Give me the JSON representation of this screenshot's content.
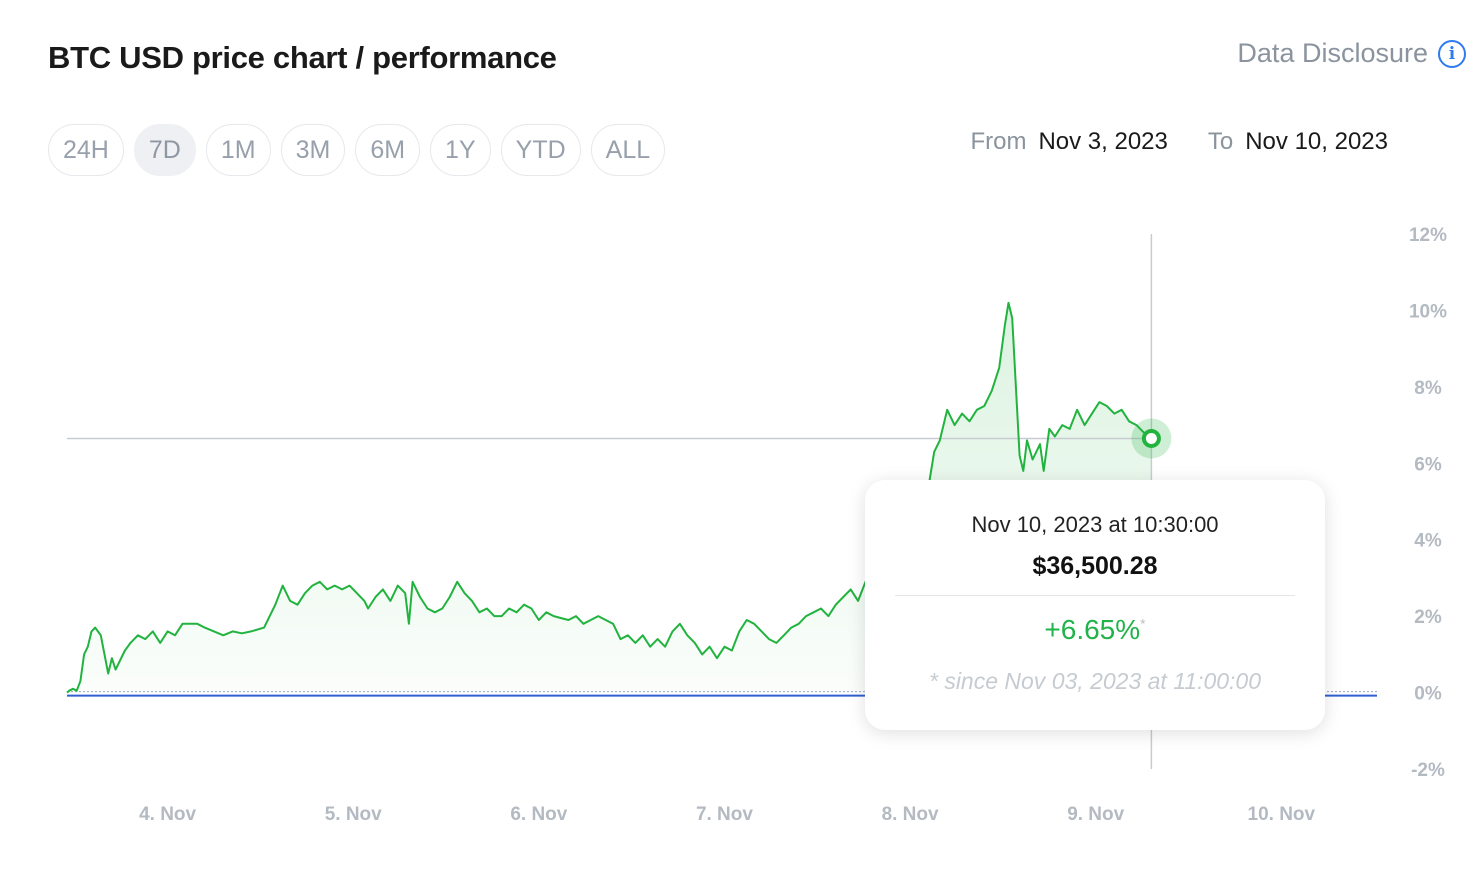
{
  "header": {
    "title": "BTC USD price chart / performance",
    "disclosure_label": "Data Disclosure",
    "info_glyph": "i"
  },
  "range_tabs": [
    {
      "label": "24H",
      "active": false
    },
    {
      "label": "7D",
      "active": true
    },
    {
      "label": "1M",
      "active": false
    },
    {
      "label": "3M",
      "active": false
    },
    {
      "label": "6M",
      "active": false
    },
    {
      "label": "1Y",
      "active": false
    },
    {
      "label": "YTD",
      "active": false
    },
    {
      "label": "ALL",
      "active": false
    }
  ],
  "date_range": {
    "from_label": "From",
    "from_value": "Nov 3, 2023",
    "to_label": "To",
    "to_value": "Nov 10, 2023"
  },
  "tooltip": {
    "date": "Nov 10, 2023 at 10:30:00",
    "price": "$36,500.28",
    "change": "+6.65%",
    "asterisk": "*",
    "since": "* since Nov 03, 2023 at 11:00:00"
  },
  "colors": {
    "line": "#22b33f",
    "fill": "#22b33f",
    "baseline": "#2f5fd0",
    "crosshair": "#c8ccd2",
    "axis_text": "#b4bac2"
  },
  "chart_data": {
    "type": "area",
    "title": "BTC USD price chart / performance",
    "x_unit": "days since Nov 3, 2023 00:00",
    "x_ticks": [
      {
        "x": 1,
        "label": "4. Nov"
      },
      {
        "x": 2,
        "label": "5. Nov"
      },
      {
        "x": 3,
        "label": "6. Nov"
      },
      {
        "x": 4,
        "label": "7. Nov"
      },
      {
        "x": 5,
        "label": "8. Nov"
      },
      {
        "x": 6,
        "label": "9. Nov"
      },
      {
        "x": 7,
        "label": "10. Nov"
      }
    ],
    "y_ticks": [
      12,
      10,
      8,
      6,
      4,
      2,
      0,
      -2
    ],
    "y_tick_suffix": "%",
    "ylim": [
      -2,
      12
    ],
    "xlim": [
      0.458,
      7.44
    ],
    "grid": false,
    "series": [
      {
        "name": "BTC USD",
        "points": [
          [
            0.458,
            0.0
          ],
          [
            0.47,
            0.05
          ],
          [
            0.49,
            0.1
          ],
          [
            0.51,
            0.05
          ],
          [
            0.53,
            0.3
          ],
          [
            0.55,
            1.0
          ],
          [
            0.57,
            1.2
          ],
          [
            0.59,
            1.6
          ],
          [
            0.61,
            1.7
          ],
          [
            0.64,
            1.5
          ],
          [
            0.66,
            1.0
          ],
          [
            0.68,
            0.5
          ],
          [
            0.7,
            0.9
          ],
          [
            0.72,
            0.6
          ],
          [
            0.74,
            0.8
          ],
          [
            0.77,
            1.1
          ],
          [
            0.8,
            1.3
          ],
          [
            0.84,
            1.5
          ],
          [
            0.88,
            1.4
          ],
          [
            0.92,
            1.6
          ],
          [
            0.96,
            1.3
          ],
          [
            1.0,
            1.6
          ],
          [
            1.04,
            1.5
          ],
          [
            1.08,
            1.8
          ],
          [
            1.12,
            1.8
          ],
          [
            1.16,
            1.8
          ],
          [
            1.2,
            1.7
          ],
          [
            1.25,
            1.6
          ],
          [
            1.3,
            1.5
          ],
          [
            1.35,
            1.6
          ],
          [
            1.4,
            1.55
          ],
          [
            1.45,
            1.6
          ],
          [
            1.52,
            1.7
          ],
          [
            1.58,
            2.3
          ],
          [
            1.62,
            2.8
          ],
          [
            1.66,
            2.4
          ],
          [
            1.7,
            2.3
          ],
          [
            1.74,
            2.6
          ],
          [
            1.78,
            2.8
          ],
          [
            1.82,
            2.9
          ],
          [
            1.86,
            2.7
          ],
          [
            1.9,
            2.8
          ],
          [
            1.94,
            2.7
          ],
          [
            1.98,
            2.8
          ],
          [
            2.02,
            2.6
          ],
          [
            2.06,
            2.4
          ],
          [
            2.08,
            2.2
          ],
          [
            2.12,
            2.5
          ],
          [
            2.16,
            2.7
          ],
          [
            2.2,
            2.4
          ],
          [
            2.24,
            2.8
          ],
          [
            2.28,
            2.6
          ],
          [
            2.3,
            1.8
          ],
          [
            2.32,
            2.9
          ],
          [
            2.36,
            2.5
          ],
          [
            2.4,
            2.2
          ],
          [
            2.44,
            2.1
          ],
          [
            2.48,
            2.2
          ],
          [
            2.52,
            2.5
          ],
          [
            2.56,
            2.9
          ],
          [
            2.6,
            2.6
          ],
          [
            2.64,
            2.4
          ],
          [
            2.68,
            2.1
          ],
          [
            2.72,
            2.2
          ],
          [
            2.76,
            2.0
          ],
          [
            2.8,
            2.0
          ],
          [
            2.84,
            2.2
          ],
          [
            2.88,
            2.1
          ],
          [
            2.92,
            2.3
          ],
          [
            2.96,
            2.2
          ],
          [
            3.0,
            1.9
          ],
          [
            3.04,
            2.1
          ],
          [
            3.08,
            2.0
          ],
          [
            3.12,
            1.95
          ],
          [
            3.16,
            1.9
          ],
          [
            3.2,
            2.0
          ],
          [
            3.24,
            1.8
          ],
          [
            3.28,
            1.9
          ],
          [
            3.32,
            2.0
          ],
          [
            3.36,
            1.9
          ],
          [
            3.4,
            1.8
          ],
          [
            3.44,
            1.4
          ],
          [
            3.48,
            1.5
          ],
          [
            3.52,
            1.3
          ],
          [
            3.56,
            1.5
          ],
          [
            3.6,
            1.2
          ],
          [
            3.64,
            1.4
          ],
          [
            3.68,
            1.2
          ],
          [
            3.72,
            1.6
          ],
          [
            3.76,
            1.8
          ],
          [
            3.8,
            1.5
          ],
          [
            3.84,
            1.3
          ],
          [
            3.88,
            1.0
          ],
          [
            3.92,
            1.2
          ],
          [
            3.96,
            0.9
          ],
          [
            4.0,
            1.2
          ],
          [
            4.04,
            1.1
          ],
          [
            4.08,
            1.6
          ],
          [
            4.12,
            1.9
          ],
          [
            4.16,
            1.8
          ],
          [
            4.2,
            1.6
          ],
          [
            4.24,
            1.4
          ],
          [
            4.28,
            1.3
          ],
          [
            4.32,
            1.5
          ],
          [
            4.36,
            1.7
          ],
          [
            4.4,
            1.8
          ],
          [
            4.44,
            2.0
          ],
          [
            4.48,
            2.1
          ],
          [
            4.52,
            2.2
          ],
          [
            4.56,
            2.0
          ],
          [
            4.6,
            2.3
          ],
          [
            4.64,
            2.5
          ],
          [
            4.68,
            2.7
          ],
          [
            4.72,
            2.4
          ],
          [
            4.76,
            2.9
          ],
          [
            4.8,
            3.1
          ],
          [
            4.84,
            3.3
          ],
          [
            4.88,
            3.6
          ],
          [
            4.92,
            3.9
          ],
          [
            4.96,
            4.2
          ],
          [
            5.0,
            4.5
          ],
          [
            5.04,
            4.6
          ],
          [
            5.08,
            4.7
          ],
          [
            5.1,
            5.4
          ],
          [
            5.13,
            6.3
          ],
          [
            5.16,
            6.6
          ],
          [
            5.2,
            7.4
          ],
          [
            5.24,
            7.0
          ],
          [
            5.28,
            7.3
          ],
          [
            5.32,
            7.1
          ],
          [
            5.36,
            7.4
          ],
          [
            5.4,
            7.5
          ],
          [
            5.44,
            7.9
          ],
          [
            5.48,
            8.5
          ],
          [
            5.51,
            9.6
          ],
          [
            5.53,
            10.2
          ],
          [
            5.55,
            9.8
          ],
          [
            5.57,
            8.0
          ],
          [
            5.59,
            6.2
          ],
          [
            5.61,
            5.8
          ],
          [
            5.63,
            6.6
          ],
          [
            5.66,
            6.1
          ],
          [
            5.7,
            6.5
          ],
          [
            5.72,
            5.8
          ],
          [
            5.75,
            6.9
          ],
          [
            5.78,
            6.7
          ],
          [
            5.82,
            7.0
          ],
          [
            5.86,
            6.9
          ],
          [
            5.9,
            7.4
          ],
          [
            5.94,
            7.0
          ],
          [
            5.98,
            7.3
          ],
          [
            6.02,
            7.6
          ],
          [
            6.06,
            7.5
          ],
          [
            6.1,
            7.3
          ],
          [
            6.14,
            7.4
          ],
          [
            6.18,
            7.1
          ],
          [
            6.22,
            7.0
          ],
          [
            6.26,
            6.8
          ],
          [
            6.3,
            6.65
          ]
        ]
      }
    ],
    "last_value": 6.65
  }
}
